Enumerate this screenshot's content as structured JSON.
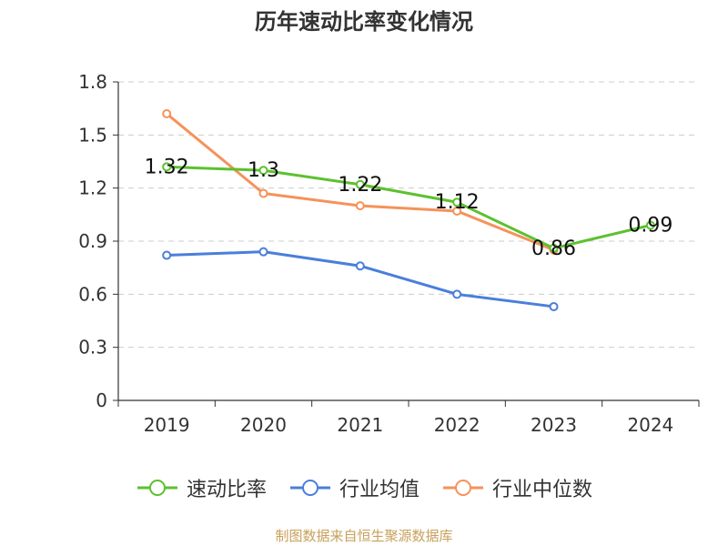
{
  "chart_data": {
    "type": "line",
    "title": "历年速动比率变化情况",
    "categories": [
      "2019",
      "2020",
      "2021",
      "2022",
      "2023",
      "2024"
    ],
    "yticks": [
      "0",
      "0.3",
      "0.6",
      "0.9",
      "1.2",
      "1.5",
      "1.8"
    ],
    "ylim": [
      0,
      1.8
    ],
    "grid": true,
    "legend_position": "bottom",
    "series": [
      {
        "name": "速动比率",
        "color": "#5cc12f",
        "values": [
          1.32,
          1.3,
          1.22,
          1.12,
          0.86,
          0.99
        ],
        "labels": [
          "1.32",
          "1.3",
          "1.22",
          "1.12",
          "0.86",
          "0.99"
        ]
      },
      {
        "name": "行业均值",
        "color": "#4a7fda",
        "values": [
          0.82,
          0.84,
          0.76,
          0.6,
          0.53,
          null
        ]
      },
      {
        "name": "行业中位数",
        "color": "#f5925a",
        "values": [
          1.62,
          1.17,
          1.1,
          1.07,
          0.85,
          null
        ]
      }
    ]
  },
  "source": "制图数据来自恒生聚源数据库"
}
